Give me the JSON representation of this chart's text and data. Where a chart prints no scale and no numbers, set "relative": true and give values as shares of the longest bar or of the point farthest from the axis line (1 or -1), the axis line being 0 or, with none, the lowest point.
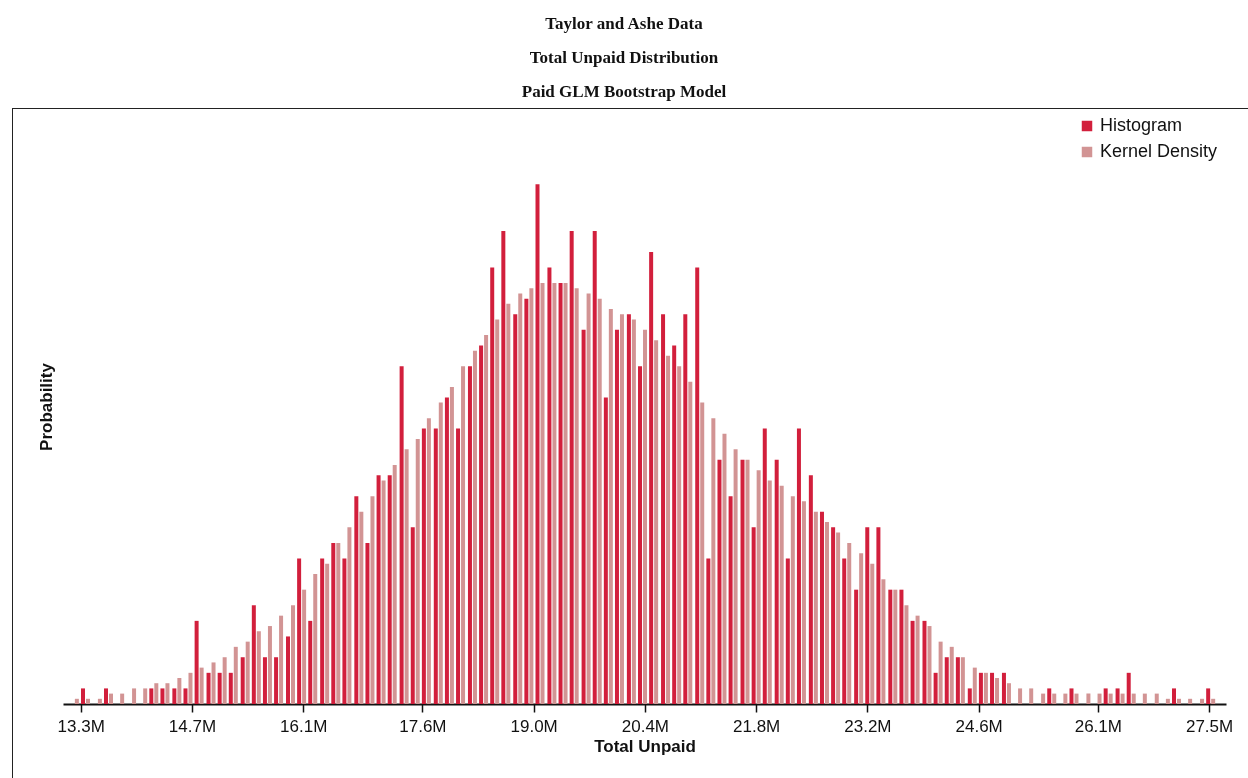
{
  "chart_data": {
    "type": "bar",
    "title": "Taylor and Ashe Data",
    "subtitle": "Total Unpaid Distribution\nPaid GLM Bootstrap Model",
    "xlabel": "Total Unpaid",
    "ylabel": "Probability",
    "relative": true,
    "legend": "top right",
    "xlim": [
      13.14,
      27.65
    ],
    "xticks": [
      {
        "value": 13.3,
        "label": "13.3M"
      },
      {
        "value": 14.7,
        "label": "14.7M"
      },
      {
        "value": 16.1,
        "label": "16.1M"
      },
      {
        "value": 17.6,
        "label": "17.6M"
      },
      {
        "value": 19.0,
        "label": "19.0M"
      },
      {
        "value": 20.4,
        "label": "20.4M"
      },
      {
        "value": 21.8,
        "label": "21.8M"
      },
      {
        "value": 23.2,
        "label": "23.2M"
      },
      {
        "value": 24.6,
        "label": "24.6M"
      },
      {
        "value": 26.1,
        "label": "26.1M"
      },
      {
        "value": 27.5,
        "label": "27.5M"
      }
    ],
    "x": [
      13.22,
      13.36,
      13.51,
      13.65,
      13.79,
      13.94,
      14.08,
      14.22,
      14.36,
      14.51,
      14.65,
      14.79,
      14.94,
      15.08,
      15.22,
      15.37,
      15.51,
      15.65,
      15.79,
      15.94,
      16.08,
      16.22,
      16.37,
      16.51,
      16.65,
      16.8,
      16.94,
      17.08,
      17.22,
      17.37,
      17.51,
      17.65,
      17.8,
      17.94,
      18.08,
      18.23,
      18.37,
      18.51,
      18.65,
      18.8,
      18.94,
      19.08,
      19.23,
      19.37,
      19.51,
      19.66,
      19.8,
      19.94,
      20.08,
      20.23,
      20.37,
      20.51,
      20.66,
      20.8,
      20.94,
      21.09,
      21.23,
      21.37,
      21.51,
      21.66,
      21.8,
      21.94,
      22.09,
      22.23,
      22.37,
      22.52,
      22.66,
      22.8,
      22.94,
      23.09,
      23.23,
      23.37,
      23.52,
      23.66,
      23.8,
      23.95,
      24.09,
      24.23,
      24.37,
      24.52,
      24.66,
      24.8,
      24.95,
      25.09,
      25.23,
      25.38,
      25.52,
      25.66,
      25.8,
      25.95,
      26.09,
      26.23,
      26.38,
      26.52,
      26.66,
      26.81,
      26.95,
      27.09,
      27.23,
      27.38,
      27.52
    ],
    "series": [
      {
        "name": "Histogram",
        "color": "#d21f3c",
        "values": [
          0,
          0.03,
          0,
          0.03,
          0,
          0,
          0,
          0.03,
          0.03,
          0.03,
          0.03,
          0.16,
          0.06,
          0.06,
          0.06,
          0.09,
          0.19,
          0.09,
          0.09,
          0.13,
          0.28,
          0.16,
          0.28,
          0.31,
          0.28,
          0.4,
          0.31,
          0.44,
          0.44,
          0.65,
          0.34,
          0.53,
          0.53,
          0.59,
          0.53,
          0.65,
          0.69,
          0.84,
          0.91,
          0.75,
          0.78,
          1,
          0.84,
          0.81,
          0.91,
          0.72,
          0.91,
          0.59,
          0.72,
          0.75,
          0.65,
          0.87,
          0.75,
          0.69,
          0.75,
          0.84,
          0.28,
          0.47,
          0.4,
          0.47,
          0.34,
          0.53,
          0.47,
          0.28,
          0.53,
          0.44,
          0.37,
          0.34,
          0.28,
          0.22,
          0.34,
          0.34,
          0.22,
          0.22,
          0.16,
          0.16,
          0.06,
          0.09,
          0.09,
          0.03,
          0.06,
          0.06,
          0.06,
          0,
          0,
          0,
          0.03,
          0,
          0.03,
          0,
          0,
          0.03,
          0.03,
          0.06,
          0,
          0,
          0,
          0.03,
          0,
          0,
          0.03
        ]
      },
      {
        "name": "Kernel Density",
        "color": "#d29494",
        "values": [
          0.01,
          0.01,
          0.01,
          0.02,
          0.02,
          0.03,
          0.03,
          0.04,
          0.04,
          0.05,
          0.06,
          0.07,
          0.08,
          0.09,
          0.11,
          0.12,
          0.14,
          0.15,
          0.17,
          0.19,
          0.22,
          0.25,
          0.27,
          0.31,
          0.34,
          0.37,
          0.4,
          0.43,
          0.46,
          0.49,
          0.51,
          0.55,
          0.58,
          0.61,
          0.65,
          0.68,
          0.71,
          0.74,
          0.77,
          0.79,
          0.8,
          0.81,
          0.81,
          0.81,
          0.8,
          0.79,
          0.78,
          0.76,
          0.75,
          0.74,
          0.72,
          0.7,
          0.67,
          0.65,
          0.62,
          0.58,
          0.55,
          0.52,
          0.49,
          0.47,
          0.45,
          0.43,
          0.42,
          0.4,
          0.39,
          0.37,
          0.35,
          0.33,
          0.31,
          0.29,
          0.27,
          0.24,
          0.22,
          0.19,
          0.17,
          0.15,
          0.12,
          0.11,
          0.09,
          0.07,
          0.06,
          0.05,
          0.04,
          0.03,
          0.03,
          0.02,
          0.02,
          0.02,
          0.02,
          0.02,
          0.02,
          0.02,
          0.02,
          0.02,
          0.02,
          0.02,
          0.01,
          0.01,
          0.01,
          0.01,
          0.01
        ]
      }
    ]
  }
}
